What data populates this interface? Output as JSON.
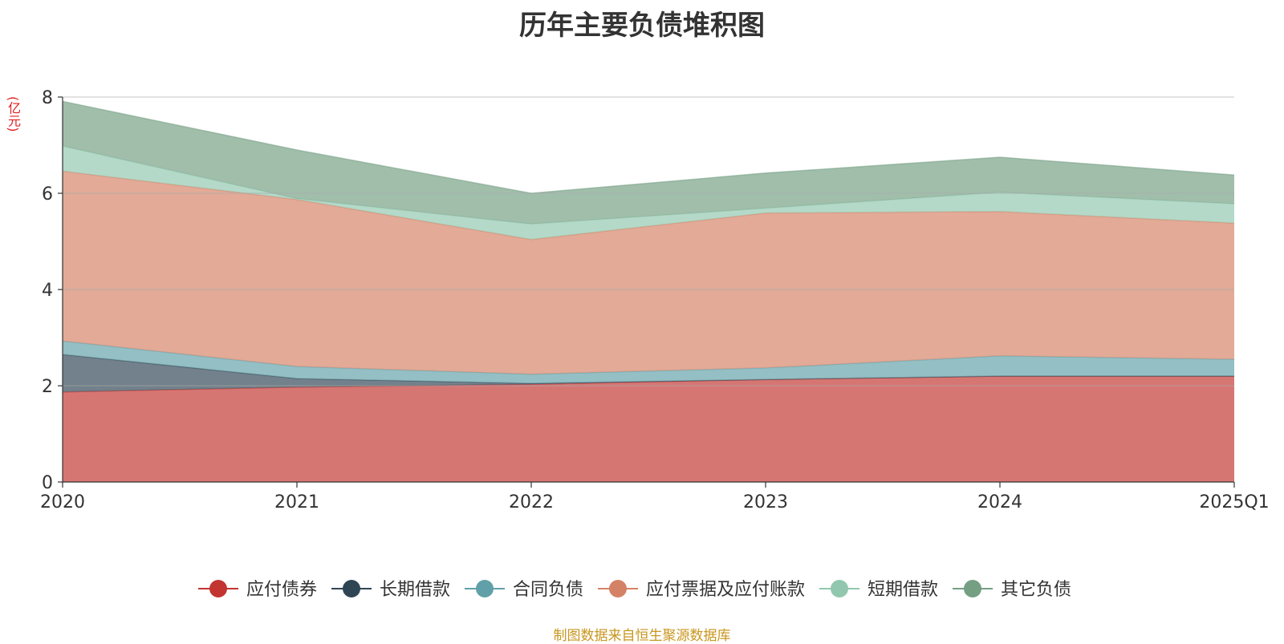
{
  "chart_data": {
    "type": "area",
    "stacked": true,
    "title": "历年主要负债堆积图",
    "ylabel": "(亿元)",
    "xlabel": "",
    "ylim": [
      0,
      8
    ],
    "yticks": [
      0,
      2,
      4,
      6,
      8
    ],
    "categories": [
      "2020",
      "2021",
      "2022",
      "2023",
      "2024",
      "2025Q1"
    ],
    "grid": true,
    "legend_position": "bottom",
    "series": [
      {
        "name": "应付债券",
        "color": "#c23531",
        "values": [
          1.87,
          1.97,
          2.03,
          2.13,
          2.2,
          2.2
        ]
      },
      {
        "name": "长期借款",
        "color": "#2f4554",
        "values": [
          0.78,
          0.18,
          0.02,
          0.0,
          0.0,
          0.0
        ]
      },
      {
        "name": "合同负债",
        "color": "#61a0a8",
        "values": [
          0.28,
          0.25,
          0.19,
          0.24,
          0.42,
          0.35
        ]
      },
      {
        "name": "应付票据及应付账款",
        "color": "#d48265",
        "values": [
          3.53,
          3.47,
          2.8,
          3.22,
          3.0,
          2.83
        ]
      },
      {
        "name": "短期借款",
        "color": "#91c7ae",
        "values": [
          0.52,
          0.02,
          0.32,
          0.1,
          0.4,
          0.4
        ]
      },
      {
        "name": "其它负债",
        "color": "#749f83",
        "values": [
          0.93,
          1.01,
          0.64,
          0.73,
          0.73,
          0.6
        ]
      }
    ]
  },
  "footer": {
    "source": "制图数据来自恒生聚源数据库"
  }
}
